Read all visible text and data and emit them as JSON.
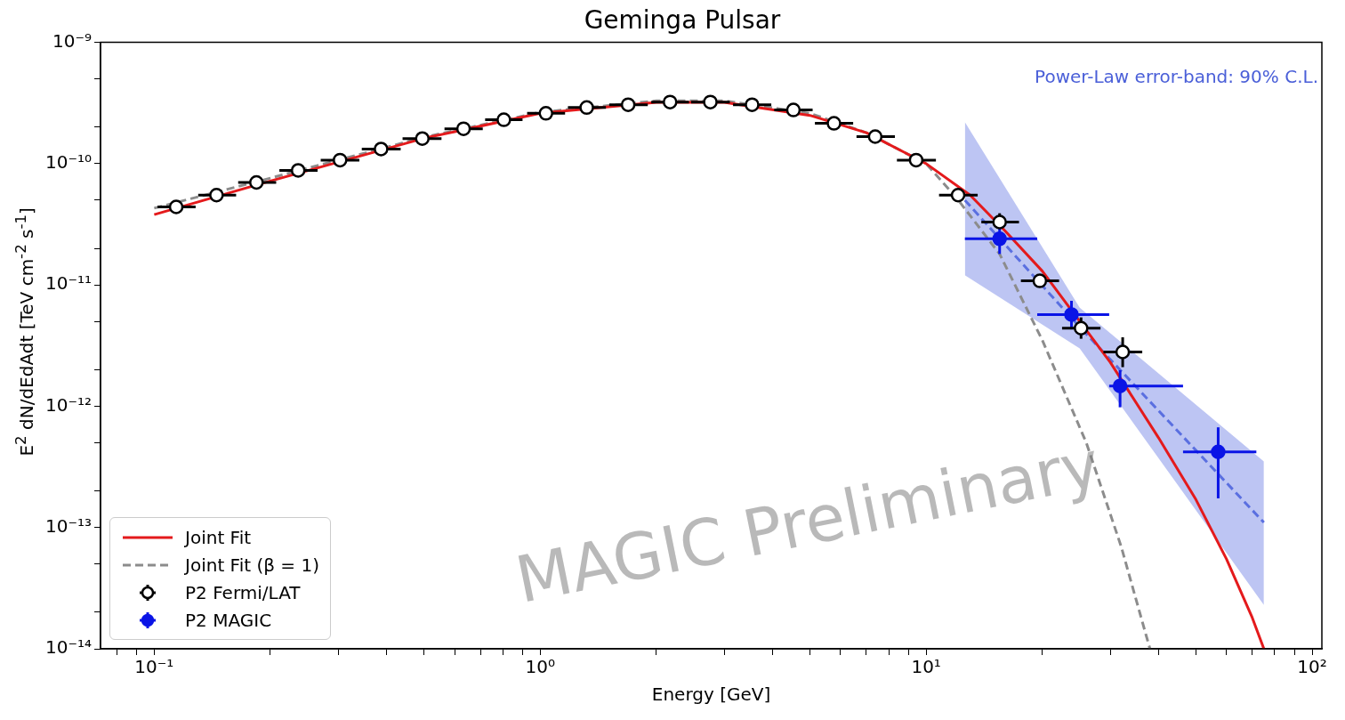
{
  "chart_data": {
    "type": "scatter",
    "title": "Geminga Pulsar",
    "xlabel": "Energy [GeV]",
    "ylabel": "E$^{2}$ dN/dEdAdt [TeV cm$^{-2}$ s$^{-1}$]",
    "log": "xy",
    "grid": false,
    "legend": "bottom left",
    "xlim": [
      0.0726,
      106
    ],
    "ylim": [
      1e-14,
      1e-09
    ],
    "xticks": [
      {
        "value": 0.08,
        "label": null
      },
      {
        "value": 0.09,
        "label": null
      },
      {
        "value": 0.1,
        "label": "10⁻¹"
      },
      {
        "value": 0.2,
        "label": null
      },
      {
        "value": 0.3,
        "label": null
      },
      {
        "value": 0.4,
        "label": null
      },
      {
        "value": 0.5,
        "label": null
      },
      {
        "value": 0.6,
        "label": null
      },
      {
        "value": 0.7,
        "label": null
      },
      {
        "value": 0.8,
        "label": null
      },
      {
        "value": 0.9,
        "label": null
      },
      {
        "value": 1,
        "label": "10⁰"
      },
      {
        "value": 2,
        "label": null
      },
      {
        "value": 3,
        "label": null
      },
      {
        "value": 4,
        "label": null
      },
      {
        "value": 5,
        "label": null
      },
      {
        "value": 6,
        "label": null
      },
      {
        "value": 7,
        "label": null
      },
      {
        "value": 8,
        "label": null
      },
      {
        "value": 9,
        "label": null
      },
      {
        "value": 10,
        "label": "10¹"
      },
      {
        "value": 20,
        "label": null
      },
      {
        "value": 30,
        "label": null
      },
      {
        "value": 40,
        "label": null
      },
      {
        "value": 50,
        "label": null
      },
      {
        "value": 60,
        "label": null
      },
      {
        "value": 70,
        "label": null
      },
      {
        "value": 80,
        "label": null
      },
      {
        "value": 90,
        "label": null
      },
      {
        "value": 100,
        "label": "10²"
      }
    ],
    "yticks": [
      {
        "value": 1e-14,
        "label": "10⁻¹⁴"
      },
      {
        "value": 2e-14,
        "label": null
      },
      {
        "value": 5e-14,
        "label": null
      },
      {
        "value": 1e-13,
        "label": "10⁻¹³"
      },
      {
        "value": 2e-13,
        "label": null
      },
      {
        "value": 5e-13,
        "label": null
      },
      {
        "value": 1e-12,
        "label": "10⁻¹²"
      },
      {
        "value": 2e-12,
        "label": null
      },
      {
        "value": 5e-12,
        "label": null
      },
      {
        "value": 1e-11,
        "label": "10⁻¹¹"
      },
      {
        "value": 2e-11,
        "label": null
      },
      {
        "value": 5e-11,
        "label": null
      },
      {
        "value": 1e-10,
        "label": "10⁻¹⁰"
      },
      {
        "value": 2e-10,
        "label": null
      },
      {
        "value": 5e-10,
        "label": null
      },
      {
        "value": 1e-09,
        "label": "10⁻⁹"
      }
    ],
    "series": [
      {
        "name": "Joint Fit",
        "type": "line",
        "color": "#e41a1c",
        "line_style": "solid",
        "marker": "none",
        "x": [
          0.1,
          0.2,
          0.5,
          1,
          2,
          3,
          5,
          7,
          10,
          13,
          16,
          20,
          25,
          30,
          40,
          50,
          60,
          70,
          75
        ],
        "values": [
          3.8e-11,
          7.2e-11,
          1.62e-10,
          2.6e-10,
          3.2e-10,
          3.2e-10,
          2.5e-10,
          1.8e-10,
          1e-10,
          5.5e-11,
          2.8e-11,
          1.3e-11,
          5e-12,
          2.3e-12,
          5.5e-13,
          1.7e-13,
          5.5e-14,
          1.8e-14,
          1e-14
        ]
      },
      {
        "name": "Joint Fit (β = 1)",
        "type": "line",
        "color": "#8c8c8c",
        "line_style": "dashed",
        "marker": "none",
        "x": [
          0.1,
          0.2,
          0.5,
          1,
          2,
          3,
          5,
          7,
          10,
          12,
          15.5,
          20,
          26,
          32,
          38
        ],
        "values": [
          4.3e-11,
          7.6e-11,
          1.65e-10,
          2.65e-10,
          3.3e-10,
          3.3e-10,
          2.6e-10,
          1.8e-10,
          1e-10,
          5.2e-11,
          1.8e-11,
          3.5e-12,
          5e-13,
          7e-14,
          1e-14
        ]
      },
      {
        "type": "line",
        "color": "#5a6fe0",
        "line_style": "dashed",
        "marker": "none",
        "x": [
          12.6,
          25,
          75
        ],
        "values": [
          5e-11,
          4.5e-12,
          1.1e-13
        ],
        "lower": [
          1.2e-11,
          3e-12,
          2.3e-14
        ],
        "upper": [
          2.2e-10,
          6.5e-12,
          3.5e-13
        ]
      },
      {
        "name": "P2 Fermi/LAT",
        "type": "scatter",
        "color": "#ffffff",
        "marker": "circle",
        "x": [
          0.114,
          0.145,
          0.184,
          0.236,
          0.303,
          0.387,
          0.495,
          0.633,
          0.805,
          1.035,
          1.32,
          1.69,
          2.17,
          2.76,
          3.54,
          4.53,
          5.77,
          7.38,
          9.42,
          12.1,
          15.5,
          19.7,
          25.2,
          32.3
        ],
        "values": [
          4.4e-11,
          5.5e-11,
          7e-11,
          8.8e-11,
          1.07e-10,
          1.32e-10,
          1.61e-10,
          1.94e-10,
          2.3e-10,
          2.6e-10,
          2.9e-10,
          3.06e-10,
          3.22e-10,
          3.22e-10,
          3.06e-10,
          2.77e-10,
          2.15e-10,
          1.67e-10,
          1.07e-10,
          5.5e-11,
          3.3e-11,
          1.08e-11,
          4.4e-12,
          2.8e-12
        ],
        "xerrors": [
          [
            0.102,
            0.128
          ],
          [
            0.13,
            0.163
          ],
          [
            0.165,
            0.207
          ],
          [
            0.211,
            0.265
          ],
          [
            0.27,
            0.34
          ],
          [
            0.345,
            0.435
          ],
          [
            0.44,
            0.555
          ],
          [
            0.565,
            0.71
          ],
          [
            0.72,
            0.9
          ],
          [
            0.925,
            1.16
          ],
          [
            1.18,
            1.48
          ],
          [
            1.51,
            1.9
          ],
          [
            1.94,
            2.43
          ],
          [
            2.46,
            3.1
          ],
          [
            3.16,
            3.97
          ],
          [
            4.04,
            5.08
          ],
          [
            5.15,
            6.47
          ],
          [
            6.6,
            8.3
          ],
          [
            8.4,
            10.6
          ],
          [
            10.8,
            13.6
          ],
          [
            13.9,
            17.4
          ],
          [
            17.6,
            22.1
          ],
          [
            22.5,
            28.3
          ],
          [
            28.8,
            36.3
          ]
        ],
        "errors": [
          null,
          null,
          null,
          null,
          null,
          null,
          null,
          null,
          null,
          null,
          null,
          null,
          null,
          null,
          null,
          null,
          null,
          null,
          null,
          null,
          [
            2.9e-11,
            3.9e-11
          ],
          null,
          [
            3.6e-12,
            5.4e-12
          ],
          [
            2.1e-12,
            3.7e-12
          ]
        ]
      },
      {
        "name": "P2 MAGIC",
        "type": "scatter",
        "color": "#0a14e6",
        "marker": "circle",
        "x": [
          15.5,
          23.8,
          31.8,
          57.1
        ],
        "values": [
          2.4e-11,
          5.7e-12,
          1.47e-12,
          4.2e-13
        ],
        "xerrors": [
          [
            12.6,
            19.4
          ],
          [
            19.4,
            29.8
          ],
          [
            29.8,
            46.3
          ],
          [
            46.3,
            71.7
          ]
        ],
        "errors": [
          [
            1.8e-11,
            3e-11
          ],
          [
            4.3e-12,
            7.4e-12
          ],
          [
            9.8e-13,
            1.98e-12
          ],
          [
            1.74e-13,
            6.7e-13
          ]
        ]
      }
    ],
    "annotations": [
      "Power-Law error-band: 90% C.L.",
      "MAGIC Preliminary"
    ]
  }
}
